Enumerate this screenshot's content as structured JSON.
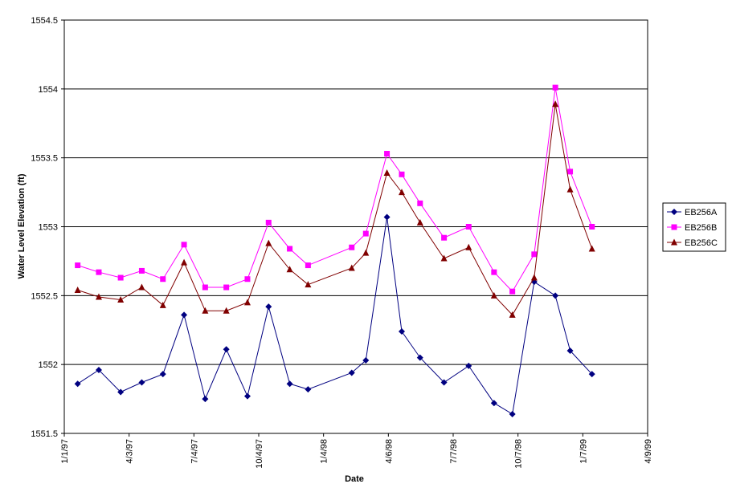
{
  "chart_data": {
    "type": "line",
    "title": "",
    "xlabel": "Date",
    "ylabel": "Water Level Elevation (ft)",
    "ylim": [
      1551.5,
      1554.5
    ],
    "yticks": [
      1551.5,
      1552,
      1552.5,
      1553,
      1553.5,
      1554,
      1554.5
    ],
    "ytick_labels": [
      "1551.5",
      "1552",
      "1552.5",
      "1553",
      "1553.5",
      "1554",
      "1554.5"
    ],
    "xlim": [
      "1997-01-01",
      "1999-04-09"
    ],
    "xticks": [
      "1997-01-01",
      "1997-04-03",
      "1997-07-04",
      "1997-10-04",
      "1998-01-04",
      "1998-04-06",
      "1998-07-07",
      "1998-10-07",
      "1999-01-07",
      "1999-04-09"
    ],
    "xtick_labels": [
      "1/1/97",
      "4/3/97",
      "7/4/97",
      "10/4/97",
      "1/4/98",
      "4/6/98",
      "7/7/98",
      "10/7/98",
      "1/7/99",
      "4/9/99"
    ],
    "grid": "horizontal major gridlines",
    "legend_position": "right",
    "series": [
      {
        "name": "EB256A",
        "color": "#000080",
        "marker": "diamond",
        "points": [
          [
            "1997-01-20",
            1551.86
          ],
          [
            "1997-02-19",
            1551.96
          ],
          [
            "1997-03-22",
            1551.8
          ],
          [
            "1997-04-21",
            1551.87
          ],
          [
            "1997-05-21",
            1551.93
          ],
          [
            "1997-06-20",
            1552.36
          ],
          [
            "1997-07-20",
            1551.75
          ],
          [
            "1997-08-19",
            1552.11
          ],
          [
            "1997-09-18",
            1551.77
          ],
          [
            "1997-10-18",
            1552.42
          ],
          [
            "1997-11-17",
            1551.86
          ],
          [
            "1997-12-13",
            1551.82
          ],
          [
            "1998-02-13",
            1551.94
          ],
          [
            "1998-03-05",
            1552.03
          ],
          [
            "1998-04-04",
            1553.07
          ],
          [
            "1998-04-25",
            1552.24
          ],
          [
            "1998-05-21",
            1552.05
          ],
          [
            "1998-06-24",
            1551.87
          ],
          [
            "1998-07-29",
            1551.99
          ],
          [
            "1998-09-03",
            1551.72
          ],
          [
            "1998-09-29",
            1551.64
          ],
          [
            "1998-10-30",
            1552.6
          ],
          [
            "1998-11-29",
            1552.5
          ],
          [
            "1998-12-20",
            1552.1
          ],
          [
            "1999-01-20",
            1551.93
          ]
        ]
      },
      {
        "name": "EB256B",
        "color": "#ff00ff",
        "marker": "square",
        "points": [
          [
            "1997-01-20",
            1552.72
          ],
          [
            "1997-02-19",
            1552.67
          ],
          [
            "1997-03-22",
            1552.63
          ],
          [
            "1997-04-21",
            1552.68
          ],
          [
            "1997-05-21",
            1552.62
          ],
          [
            "1997-06-20",
            1552.87
          ],
          [
            "1997-07-20",
            1552.56
          ],
          [
            "1997-08-19",
            1552.56
          ],
          [
            "1997-09-18",
            1552.62
          ],
          [
            "1997-10-18",
            1553.03
          ],
          [
            "1997-11-17",
            1552.84
          ],
          [
            "1997-12-13",
            1552.72
          ],
          [
            "1998-02-13",
            1552.85
          ],
          [
            "1998-03-05",
            1552.95
          ],
          [
            "1998-04-04",
            1553.53
          ],
          [
            "1998-04-25",
            1553.38
          ],
          [
            "1998-05-21",
            1553.17
          ],
          [
            "1998-06-24",
            1552.92
          ],
          [
            "1998-07-29",
            1553.0
          ],
          [
            "1998-09-03",
            1552.67
          ],
          [
            "1998-09-29",
            1552.53
          ],
          [
            "1998-10-30",
            1552.8
          ],
          [
            "1998-11-29",
            1554.01
          ],
          [
            "1998-12-20",
            1553.4
          ],
          [
            "1999-01-20",
            1553.0
          ]
        ]
      },
      {
        "name": "EB256C",
        "color": "#800000",
        "marker": "triangle",
        "points": [
          [
            "1997-01-20",
            1552.54
          ],
          [
            "1997-02-19",
            1552.49
          ],
          [
            "1997-03-22",
            1552.47
          ],
          [
            "1997-04-21",
            1552.56
          ],
          [
            "1997-05-21",
            1552.43
          ],
          [
            "1997-06-20",
            1552.74
          ],
          [
            "1997-07-20",
            1552.39
          ],
          [
            "1997-08-19",
            1552.39
          ],
          [
            "1997-09-18",
            1552.45
          ],
          [
            "1997-10-18",
            1552.88
          ],
          [
            "1997-11-17",
            1552.69
          ],
          [
            "1997-12-13",
            1552.58
          ],
          [
            "1998-02-13",
            1552.7
          ],
          [
            "1998-03-05",
            1552.81
          ],
          [
            "1998-04-04",
            1553.39
          ],
          [
            "1998-04-25",
            1553.25
          ],
          [
            "1998-05-21",
            1553.03
          ],
          [
            "1998-06-24",
            1552.77
          ],
          [
            "1998-07-29",
            1552.85
          ],
          [
            "1998-09-03",
            1552.5
          ],
          [
            "1998-09-29",
            1552.36
          ],
          [
            "1998-10-30",
            1552.63
          ],
          [
            "1998-11-29",
            1553.89
          ],
          [
            "1998-12-20",
            1553.27
          ],
          [
            "1999-01-20",
            1552.84
          ]
        ]
      }
    ]
  }
}
